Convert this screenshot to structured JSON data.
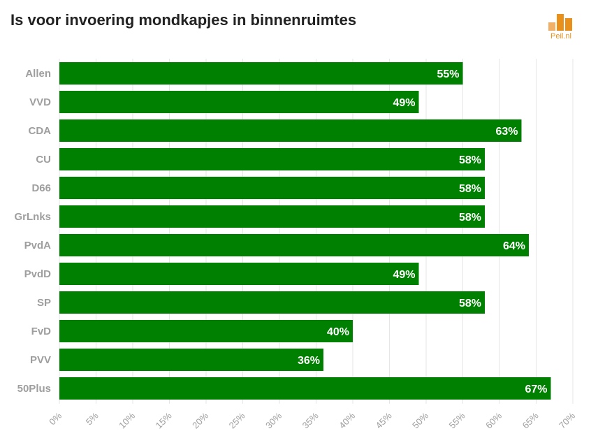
{
  "header": {
    "title": "Is voor invoering mondkapjes in binnenruimtes",
    "logo_text": "Peil.nl"
  },
  "colors": {
    "bar": "#008000",
    "grid": "#e6e6e6",
    "axis_text": "#9e9e9e",
    "logo": "#e8901a"
  },
  "chart_data": {
    "type": "bar",
    "orientation": "horizontal",
    "title": "Is voor invoering mondkapjes in binnenruimtes",
    "xlabel": "",
    "ylabel": "",
    "categories": [
      "Allen",
      "VVD",
      "CDA",
      "CU",
      "D66",
      "GrLnks",
      "PvdA",
      "PvdD",
      "SP",
      "FvD",
      "PVV",
      "50Plus"
    ],
    "values": [
      55,
      49,
      63,
      58,
      58,
      58,
      64,
      49,
      58,
      40,
      36,
      67
    ],
    "value_labels": [
      "55%",
      "49%",
      "63%",
      "58%",
      "58%",
      "58%",
      "64%",
      "49%",
      "58%",
      "40%",
      "36%",
      "67%"
    ],
    "xlim": [
      0,
      70
    ],
    "x_ticks": [
      0,
      5,
      10,
      15,
      20,
      25,
      30,
      35,
      40,
      45,
      50,
      55,
      60,
      65,
      70
    ],
    "x_tick_labels": [
      "0%",
      "5%",
      "10%",
      "15%",
      "20%",
      "25%",
      "30%",
      "35%",
      "40%",
      "45%",
      "50%",
      "55%",
      "60%",
      "65%",
      "70%"
    ],
    "grid": true,
    "legend": "none"
  }
}
